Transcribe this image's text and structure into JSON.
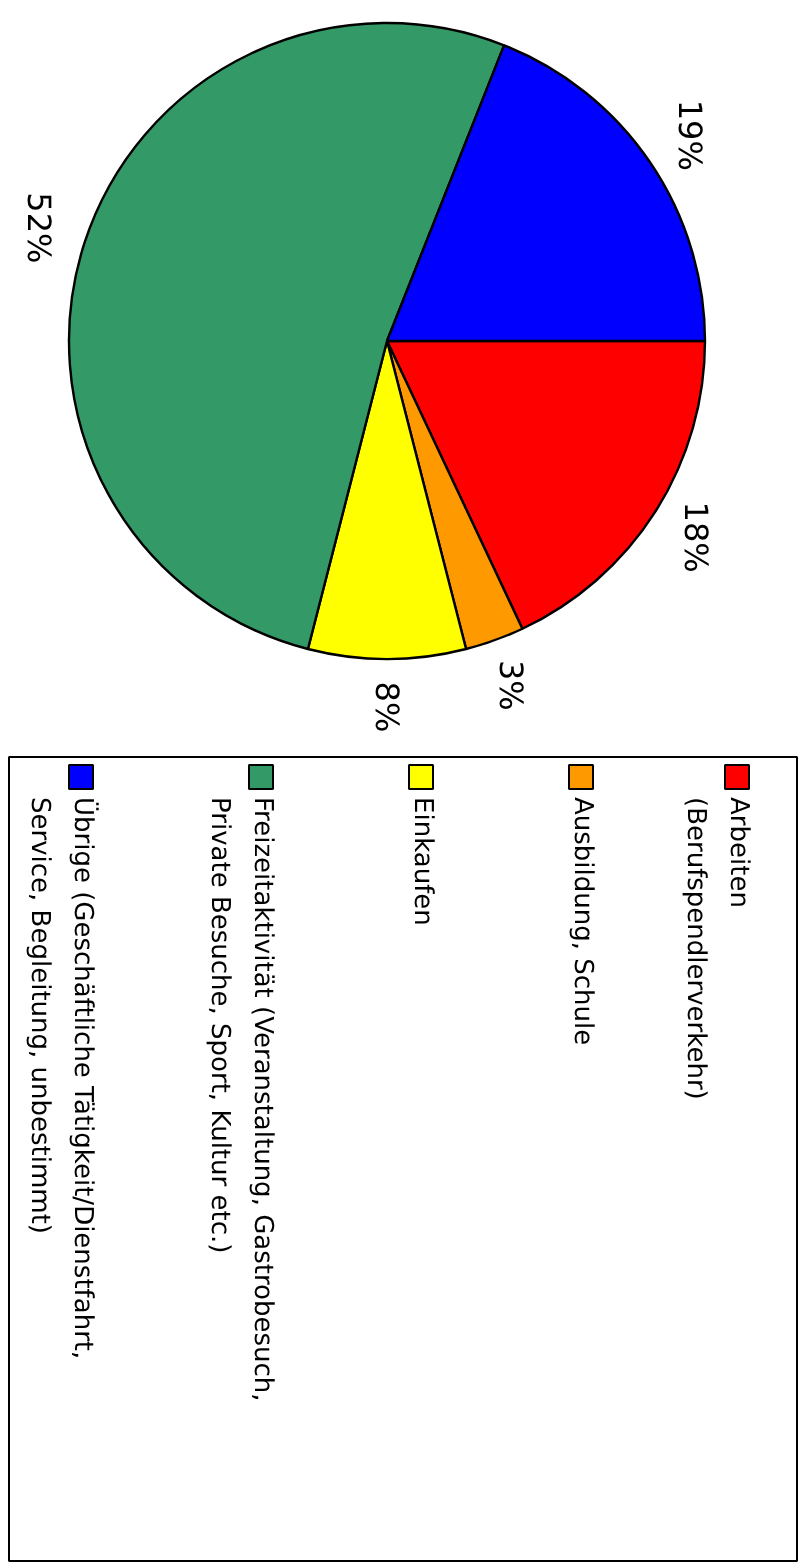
{
  "chart_data": {
    "type": "pie",
    "categories": [
      "Arbeiten\n(Berufspendlerverkehr)",
      "Ausbildung, Schule",
      "Einkaufen",
      "Freizeitaktivität (Veranstaltung, Gastrobesuch,\nPrivate Besuche, Sport, Kultur etc.)",
      "Übrige (Geschäftliche Tätigkeit/Dienstfahrt,\nService, Begleitung, unbestimmt)"
    ],
    "values": [
      18,
      3,
      8,
      52,
      19
    ],
    "colors": [
      "#ff0000",
      "#ff9900",
      "#ffff00",
      "#339966",
      "#0000ff"
    ],
    "value_labels": [
      "18%",
      "3%",
      "8%",
      "52%",
      "19%"
    ],
    "legend": "bottom"
  }
}
